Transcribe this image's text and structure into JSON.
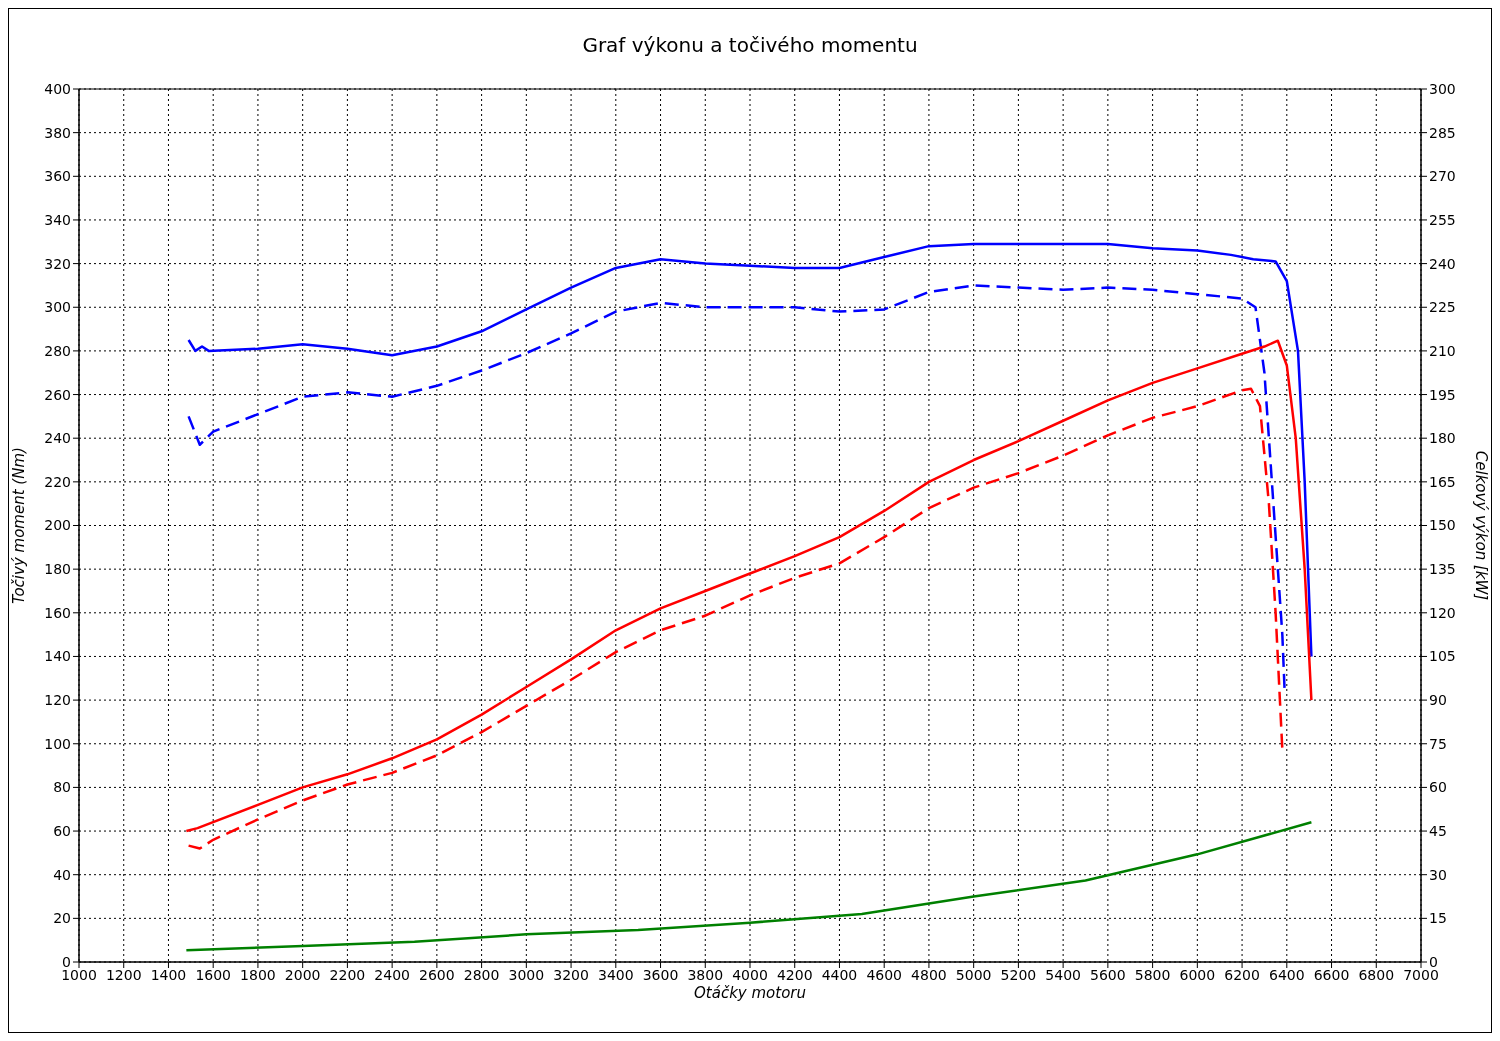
{
  "chart_data": {
    "type": "line",
    "title": "Graf výkonu a točivého momentu",
    "xlabel": "Otáčky motoru",
    "ylabel": "Točivý moment (Nm)",
    "y2label": "Celkový výkon [kW]",
    "xlim": [
      1000,
      7000
    ],
    "xticks": [
      1000,
      1200,
      1400,
      1600,
      1800,
      2000,
      2200,
      2400,
      2600,
      2800,
      3000,
      3200,
      3400,
      3600,
      3800,
      4000,
      4200,
      4400,
      4600,
      4800,
      5000,
      5200,
      5400,
      5600,
      5800,
      6000,
      6200,
      6400,
      6600,
      6800,
      7000
    ],
    "ylim": [
      0,
      400
    ],
    "yticks": [
      0,
      20,
      40,
      60,
      80,
      100,
      120,
      140,
      160,
      180,
      200,
      220,
      240,
      260,
      280,
      300,
      320,
      340,
      360,
      380,
      400
    ],
    "y2lim": [
      0,
      300
    ],
    "y2ticks": [
      0,
      15,
      30,
      45,
      60,
      75,
      90,
      105,
      120,
      135,
      150,
      165,
      180,
      195,
      210,
      225,
      240,
      255,
      270,
      285,
      300
    ],
    "grid": true,
    "marker": "none",
    "series": [
      {
        "color": "#0000ff",
        "line_style": "solid",
        "x": [
          1490,
          1520,
          1550,
          1580,
          1800,
          2000,
          2200,
          2400,
          2600,
          2800,
          3000,
          3200,
          3400,
          3600,
          3800,
          4000,
          4200,
          4400,
          4600,
          4800,
          5000,
          5200,
          5400,
          5600,
          5800,
          6000,
          6150,
          6250,
          6350,
          6400,
          6450,
          6480,
          6510
        ],
        "values": [
          285,
          280,
          282,
          280,
          281,
          283,
          281,
          278,
          282,
          289,
          299,
          309,
          318,
          322,
          320,
          319,
          318,
          318,
          323,
          328,
          329,
          329,
          329,
          329,
          327,
          326,
          324,
          322,
          321,
          312,
          280,
          220,
          140
        ]
      },
      {
        "color": "#0000ff",
        "line_style": "dashed",
        "x": [
          1490,
          1540,
          1600,
          1800,
          2000,
          2200,
          2400,
          2600,
          2800,
          3000,
          3200,
          3400,
          3600,
          3800,
          4000,
          4200,
          4400,
          4600,
          4800,
          5000,
          5200,
          5400,
          5600,
          5800,
          6000,
          6200,
          6260,
          6300,
          6340,
          6380,
          6390
        ],
        "values": [
          250,
          237,
          243,
          251,
          259,
          261,
          259,
          264,
          271,
          279,
          288,
          298,
          302,
          300,
          300,
          300,
          298,
          299,
          307,
          310,
          309,
          308,
          309,
          308,
          306,
          304,
          300,
          270,
          210,
          150,
          125
        ]
      },
      {
        "color": "#ff0000",
        "line_style": "solid",
        "axis": "y2",
        "x": [
          1480,
          1530,
          1800,
          2000,
          2200,
          2400,
          2600,
          2800,
          3000,
          3200,
          3400,
          3600,
          3800,
          4000,
          4200,
          4400,
          4600,
          4800,
          5000,
          5200,
          5400,
          5600,
          5800,
          6000,
          6200,
          6300,
          6360,
          6400,
          6440,
          6480,
          6510
        ],
        "values": [
          45,
          46,
          54,
          60,
          64.5,
          70,
          76.5,
          85,
          94.5,
          104,
          114,
          121.5,
          127.5,
          133.5,
          139.5,
          146,
          155,
          165,
          172.5,
          179,
          186,
          193,
          199,
          204,
          209,
          211.5,
          213.5,
          205,
          180,
          135,
          90
        ]
      },
      {
        "color": "#ff0000",
        "line_style": "dashed",
        "axis": "y2",
        "x": [
          1490,
          1540,
          1600,
          1800,
          2000,
          2200,
          2400,
          2600,
          2800,
          3000,
          3200,
          3400,
          3600,
          3800,
          4000,
          4200,
          4400,
          4600,
          4800,
          5000,
          5200,
          5400,
          5600,
          5800,
          6000,
          6200,
          6240,
          6280,
          6320,
          6350,
          6380
        ],
        "values": [
          40,
          39,
          42,
          49,
          55.5,
          61,
          65,
          71,
          79,
          88,
          97,
          106.5,
          114,
          119,
          126,
          132,
          137,
          146,
          156,
          163,
          168,
          174,
          181,
          187,
          191,
          196.5,
          197,
          191,
          157.5,
          120,
          73
        ]
      },
      {
        "color": "#008000",
        "line_style": "solid",
        "axis": "y2",
        "x": [
          1480,
          2000,
          2500,
          3000,
          3500,
          4000,
          4500,
          5000,
          5500,
          6000,
          6510
        ],
        "values": [
          4,
          5.5,
          7,
          9.5,
          11,
          13.5,
          16.5,
          22.5,
          28,
          37,
          48
        ]
      }
    ]
  }
}
